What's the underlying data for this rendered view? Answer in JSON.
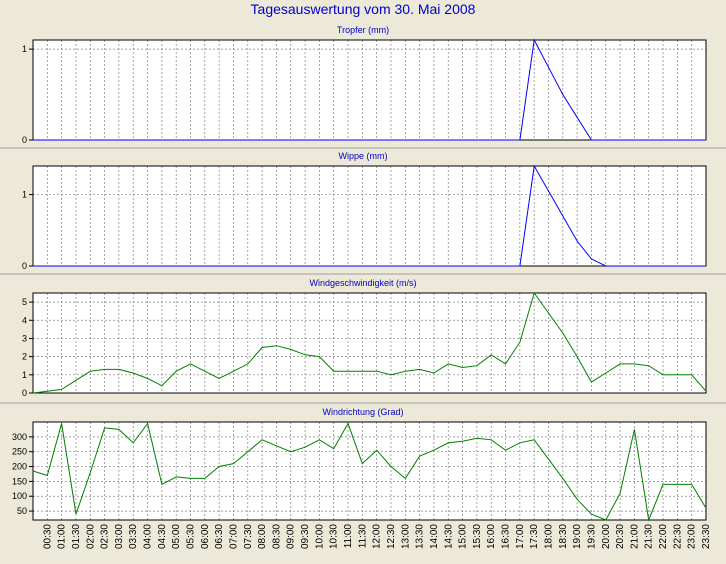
{
  "page": {
    "title": "Tagesauswertung vom 30. Mai 2008"
  },
  "colors": {
    "background": "#ece9d8",
    "plot_bg": "#ffffff",
    "title": "#0000c8",
    "rain_line": "#0000ff",
    "wind_line": "#008000",
    "grid": "#808080",
    "frame": "#000000"
  },
  "chart_data": [
    {
      "type": "line",
      "title": "Tropfer (mm)",
      "x": [
        "00:00",
        "00:30",
        "01:00",
        "01:30",
        "02:00",
        "02:30",
        "03:00",
        "03:30",
        "04:00",
        "04:30",
        "05:00",
        "05:30",
        "06:00",
        "06:30",
        "07:00",
        "07:30",
        "08:00",
        "08:30",
        "09:00",
        "09:30",
        "10:00",
        "10:30",
        "11:00",
        "11:30",
        "12:00",
        "12:30",
        "13:00",
        "13:30",
        "14:00",
        "14:30",
        "15:00",
        "15:30",
        "16:00",
        "16:30",
        "17:00",
        "17:30",
        "18:00",
        "18:30",
        "19:00",
        "19:30",
        "20:00",
        "20:30",
        "21:00",
        "21:30",
        "22:00",
        "22:30",
        "23:00",
        "23:30"
      ],
      "series": [
        {
          "color": "#0000ff",
          "values": [
            0,
            0,
            0,
            0,
            0,
            0,
            0,
            0,
            0,
            0,
            0,
            0,
            0,
            0,
            0,
            0,
            0,
            0,
            0,
            0,
            0,
            0,
            0,
            0,
            0,
            0,
            0,
            0,
            0,
            0,
            0,
            0,
            0,
            0,
            0,
            1.1,
            0.8,
            0.5,
            0.25,
            0,
            0,
            0,
            0,
            0,
            0,
            0,
            0,
            0
          ]
        }
      ],
      "yticks": [
        0,
        1
      ],
      "ylim": [
        0,
        1.1
      ],
      "grid": true
    },
    {
      "type": "line",
      "title": "Wippe (mm)",
      "x": [
        "00:00",
        "00:30",
        "01:00",
        "01:30",
        "02:00",
        "02:30",
        "03:00",
        "03:30",
        "04:00",
        "04:30",
        "05:00",
        "05:30",
        "06:00",
        "06:30",
        "07:00",
        "07:30",
        "08:00",
        "08:30",
        "09:00",
        "09:30",
        "10:00",
        "10:30",
        "11:00",
        "11:30",
        "12:00",
        "12:30",
        "13:00",
        "13:30",
        "14:00",
        "14:30",
        "15:00",
        "15:30",
        "16:00",
        "16:30",
        "17:00",
        "17:30",
        "18:00",
        "18:30",
        "19:00",
        "19:30",
        "20:00",
        "20:30",
        "21:00",
        "21:30",
        "22:00",
        "22:30",
        "23:00",
        "23:30"
      ],
      "series": [
        {
          "color": "#0000ff",
          "values": [
            0,
            0,
            0,
            0,
            0,
            0,
            0,
            0,
            0,
            0,
            0,
            0,
            0,
            0,
            0,
            0,
            0,
            0,
            0,
            0,
            0,
            0,
            0,
            0,
            0,
            0,
            0,
            0,
            0,
            0,
            0,
            0,
            0,
            0,
            0,
            1.4,
            1.05,
            0.7,
            0.35,
            0.1,
            0,
            0,
            0,
            0,
            0,
            0,
            0,
            0
          ]
        }
      ],
      "yticks": [
        0,
        1
      ],
      "ylim": [
        0,
        1.4
      ],
      "grid": true
    },
    {
      "type": "line",
      "title": "Windgeschwindigkeit (m/s)",
      "x": [
        "00:00",
        "00:30",
        "01:00",
        "01:30",
        "02:00",
        "02:30",
        "03:00",
        "03:30",
        "04:00",
        "04:30",
        "05:00",
        "05:30",
        "06:00",
        "06:30",
        "07:00",
        "07:30",
        "08:00",
        "08:30",
        "09:00",
        "09:30",
        "10:00",
        "10:30",
        "11:00",
        "11:30",
        "12:00",
        "12:30",
        "13:00",
        "13:30",
        "14:00",
        "14:30",
        "15:00",
        "15:30",
        "16:00",
        "16:30",
        "17:00",
        "17:30",
        "18:00",
        "18:30",
        "19:00",
        "19:30",
        "20:00",
        "20:30",
        "21:00",
        "21:30",
        "22:00",
        "22:30",
        "23:00",
        "23:30"
      ],
      "series": [
        {
          "color": "#008000",
          "values": [
            0,
            0.1,
            0.2,
            0.7,
            1.2,
            1.3,
            1.3,
            1.1,
            0.8,
            0.4,
            1.2,
            1.6,
            1.2,
            0.8,
            1.2,
            1.6,
            2.5,
            2.6,
            2.4,
            2.1,
            2.0,
            1.2,
            1.2,
            1.2,
            1.2,
            1.0,
            1.2,
            1.3,
            1.1,
            1.6,
            1.4,
            1.5,
            2.1,
            1.6,
            2.8,
            5.5,
            4.4,
            3.3,
            2.0,
            0.6,
            1.1,
            1.6,
            1.6,
            1.5,
            1.0,
            1.0,
            1.0,
            0.1
          ]
        }
      ],
      "yticks": [
        0,
        1,
        2,
        3,
        4,
        5
      ],
      "ylim": [
        0,
        5.5
      ],
      "grid": true
    },
    {
      "type": "line",
      "title": "Windrichtung (Grad)",
      "x": [
        "00:00",
        "00:30",
        "01:00",
        "01:30",
        "02:00",
        "02:30",
        "03:00",
        "03:30",
        "04:00",
        "04:30",
        "05:00",
        "05:30",
        "06:00",
        "06:30",
        "07:00",
        "07:30",
        "08:00",
        "08:30",
        "09:00",
        "09:30",
        "10:00",
        "10:30",
        "11:00",
        "11:30",
        "12:00",
        "12:30",
        "13:00",
        "13:30",
        "14:00",
        "14:30",
        "15:00",
        "15:30",
        "16:00",
        "16:30",
        "17:00",
        "17:30",
        "18:00",
        "18:30",
        "19:00",
        "19:30",
        "20:00",
        "20:30",
        "21:00",
        "21:30",
        "22:00",
        "22:30",
        "23:00",
        "23:30"
      ],
      "series": [
        {
          "color": "#008000",
          "values": [
            185,
            170,
            345,
            40,
            180,
            330,
            325,
            280,
            345,
            140,
            165,
            160,
            160,
            200,
            210,
            250,
            290,
            270,
            250,
            265,
            290,
            260,
            345,
            210,
            255,
            200,
            160,
            235,
            255,
            280,
            285,
            295,
            290,
            255,
            280,
            290,
            225,
            160,
            90,
            40,
            20,
            110,
            325,
            15,
            140,
            140,
            140,
            60
          ]
        }
      ],
      "yticks": [
        50,
        100,
        150,
        200,
        250,
        300
      ],
      "ylim": [
        20,
        350
      ],
      "grid": true
    }
  ],
  "x_tick_labels": [
    "00:30",
    "01:00",
    "01:30",
    "02:00",
    "02:30",
    "03:00",
    "03:30",
    "04:00",
    "04:30",
    "05:00",
    "05:30",
    "06:00",
    "06:30",
    "07:00",
    "07:30",
    "08:00",
    "08:30",
    "09:00",
    "09:30",
    "10:00",
    "10:30",
    "11:00",
    "11:30",
    "12:00",
    "12:30",
    "13:00",
    "13:30",
    "14:00",
    "14:30",
    "15:00",
    "15:30",
    "16:00",
    "16:30",
    "17:00",
    "17:30",
    "18:00",
    "18:30",
    "19:00",
    "19:30",
    "20:00",
    "20:30",
    "21:00",
    "21:30",
    "22:00",
    "22:30",
    "23:00",
    "23:30"
  ]
}
